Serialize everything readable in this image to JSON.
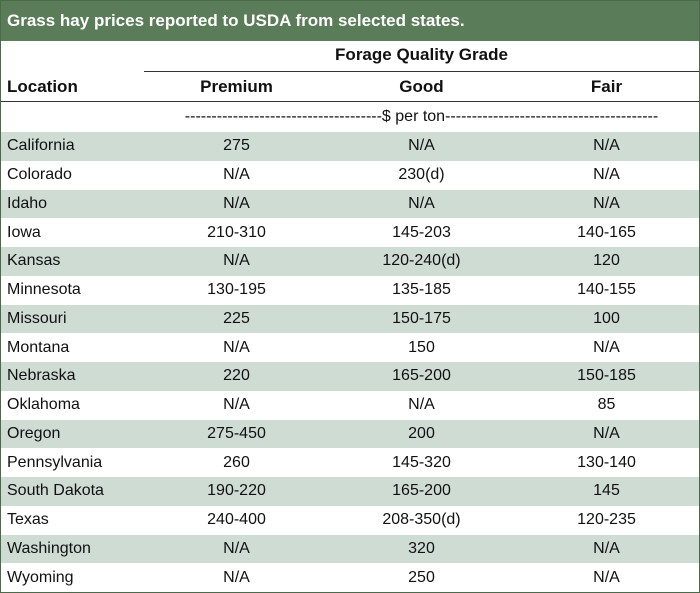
{
  "title": "Grass hay prices reported to USDA from selected states.",
  "header": {
    "group": "Forage Quality Grade",
    "location": "Location",
    "premium": "Premium",
    "good": "Good",
    "fair": "Fair",
    "unit": "-------------------------------------$ per ton----------------------------------------"
  },
  "colors": {
    "title_bg": "#5b7c59",
    "row_alt_bg": "#cfdcd4"
  },
  "rows": [
    {
      "location": "California",
      "premium": "275",
      "good": "N/A",
      "fair": "N/A"
    },
    {
      "location": "Colorado",
      "premium": "N/A",
      "good": "230(d)",
      "fair": "N/A"
    },
    {
      "location": "Idaho",
      "premium": "N/A",
      "good": "N/A",
      "fair": "N/A"
    },
    {
      "location": "Iowa",
      "premium": "210-310",
      "good": "145-203",
      "fair": "140-165"
    },
    {
      "location": "Kansas",
      "premium": "N/A",
      "good": "120-240(d)",
      "fair": "120"
    },
    {
      "location": "Minnesota",
      "premium": "130-195",
      "good": "135-185",
      "fair": "140-155"
    },
    {
      "location": "Missouri",
      "premium": "225",
      "good": "150-175",
      "fair": "100"
    },
    {
      "location": "Montana",
      "premium": "N/A",
      "good": "150",
      "fair": "N/A"
    },
    {
      "location": "Nebraska",
      "premium": "220",
      "good": "165-200",
      "fair": "150-185"
    },
    {
      "location": "Oklahoma",
      "premium": "N/A",
      "good": "N/A",
      "fair": "85"
    },
    {
      "location": "Oregon",
      "premium": "275-450",
      "good": "200",
      "fair": "N/A"
    },
    {
      "location": "Pennsylvania",
      "premium": "260",
      "good": "145-320",
      "fair": "130-140"
    },
    {
      "location": "South Dakota",
      "premium": "190-220",
      "good": "165-200",
      "fair": "145"
    },
    {
      "location": "Texas",
      "premium": "240-400",
      "good": "208-350(d)",
      "fair": "120-235"
    },
    {
      "location": "Washington",
      "premium": "N/A",
      "good": "320",
      "fair": "N/A"
    },
    {
      "location": "Wyoming",
      "premium": "N/A",
      "good": "250",
      "fair": "N/A"
    }
  ]
}
